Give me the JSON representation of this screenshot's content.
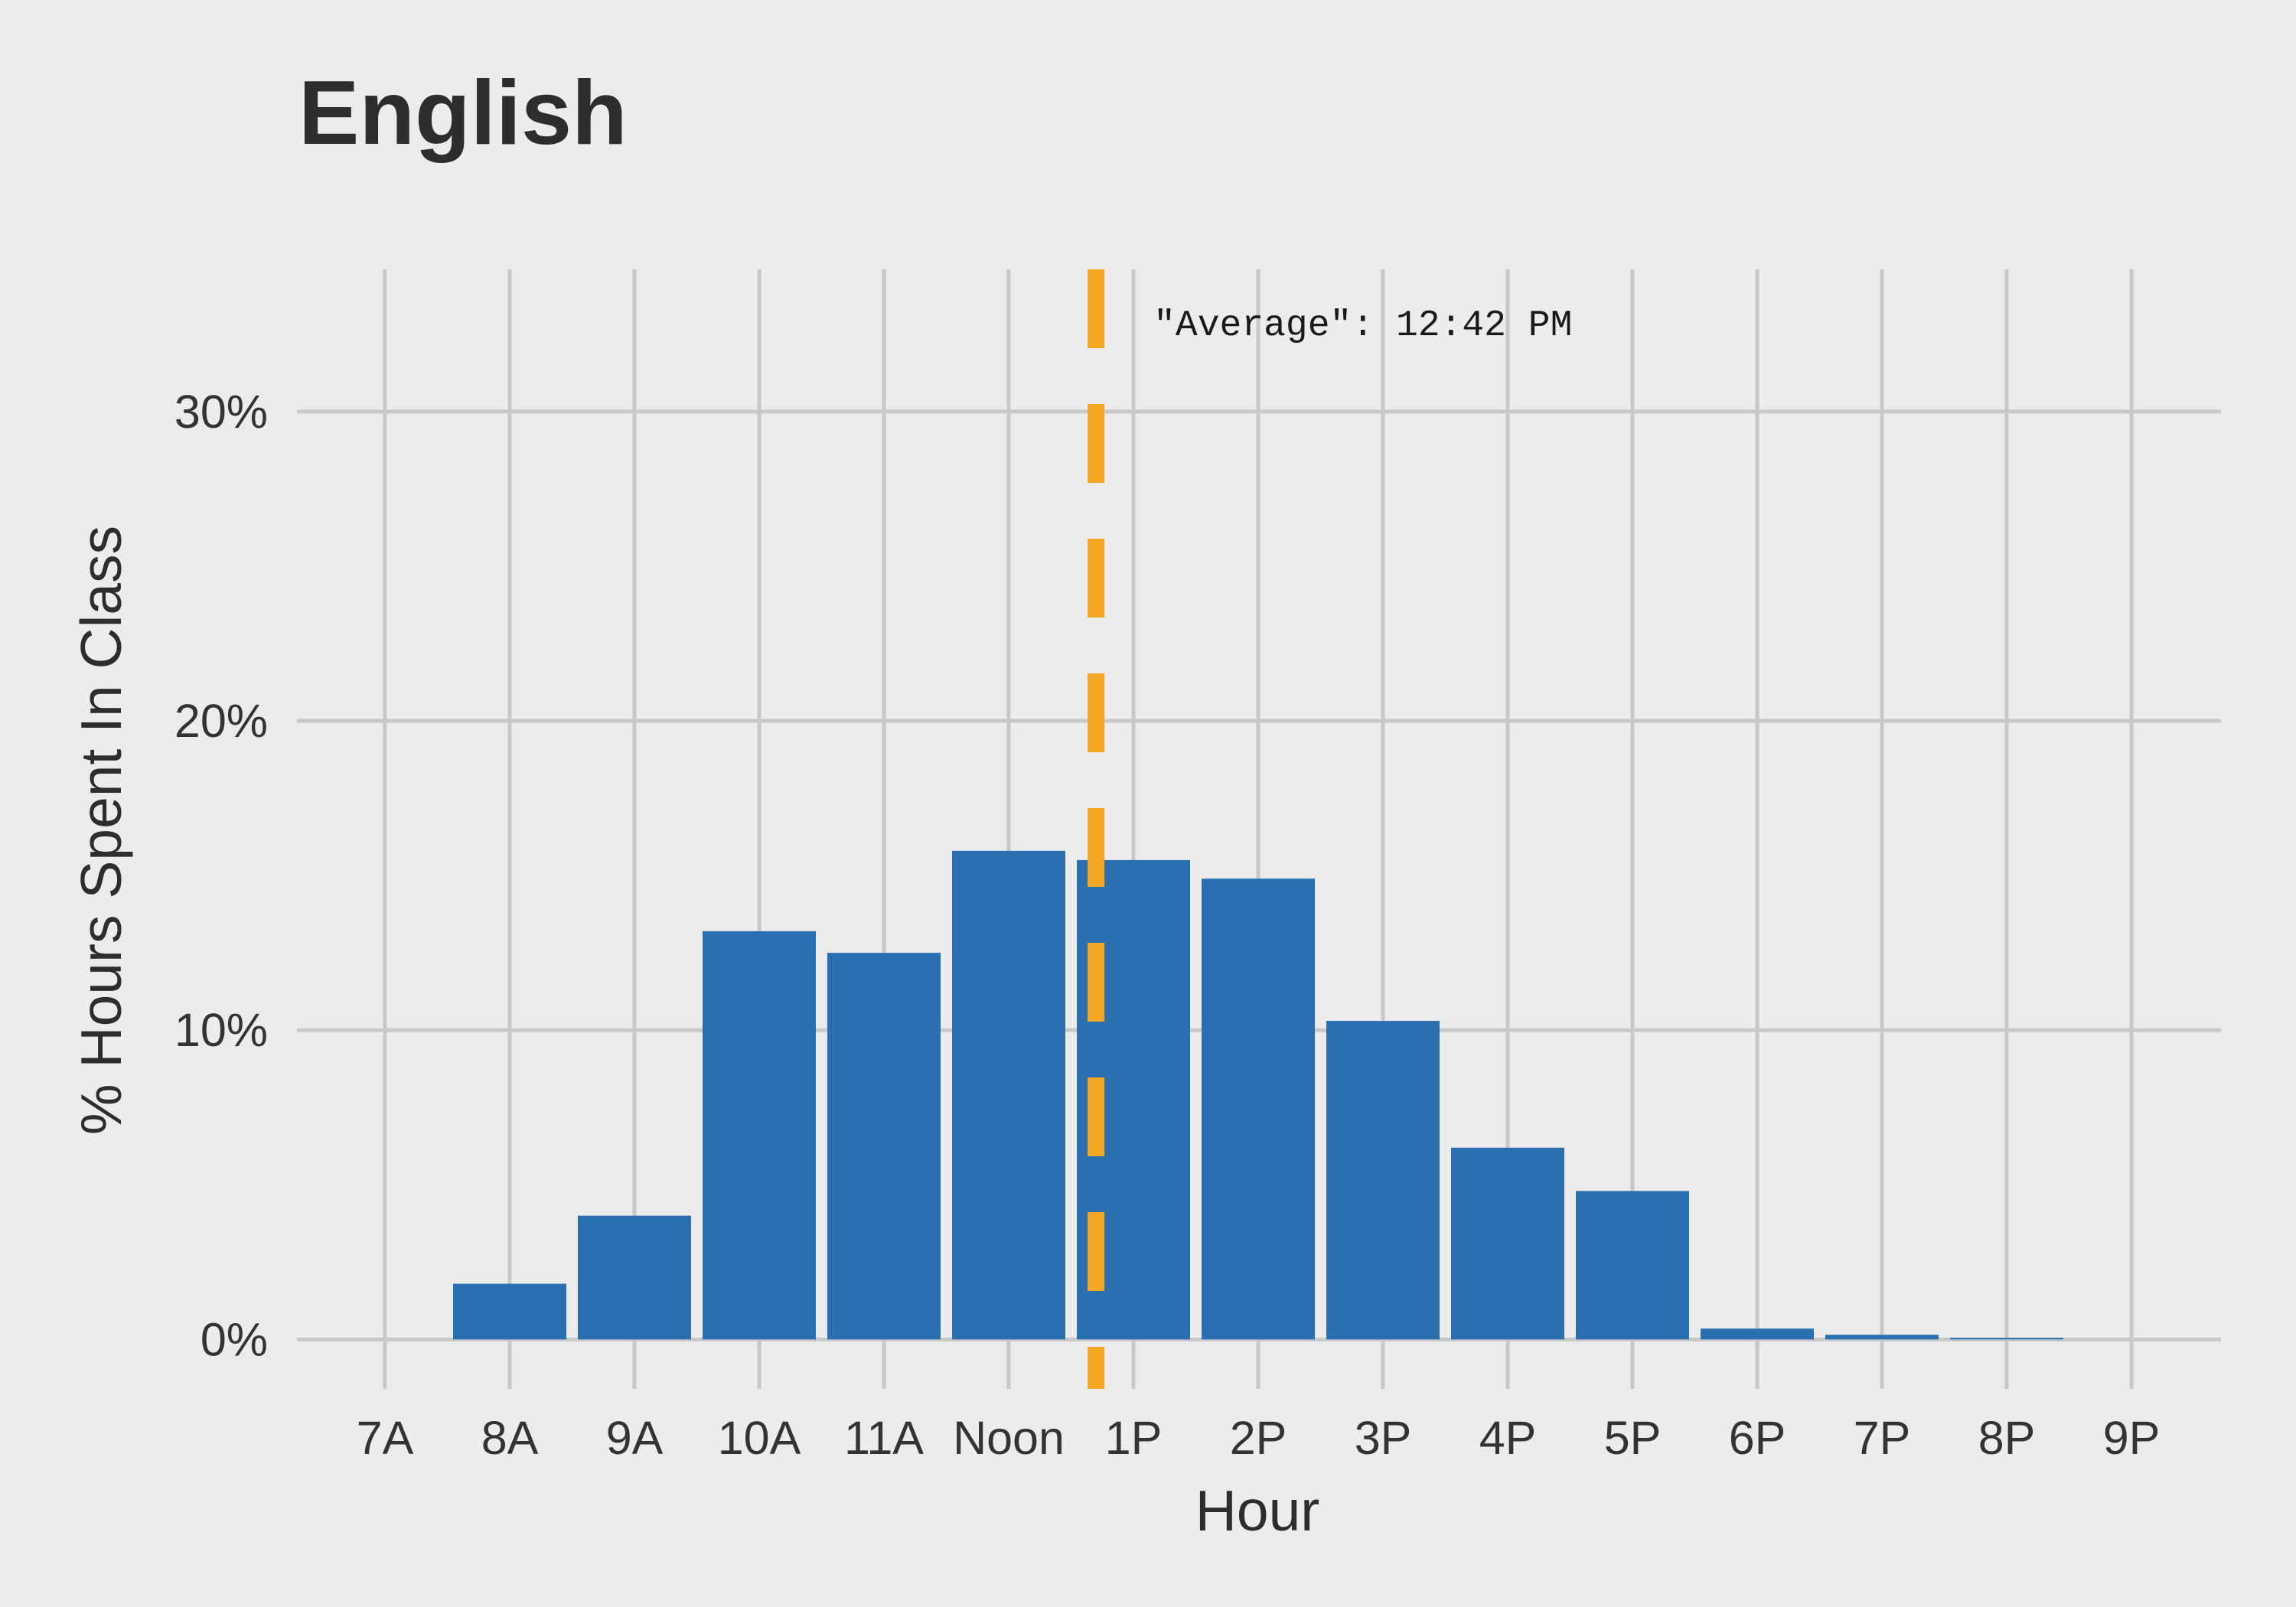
{
  "chart_data": {
    "type": "bar",
    "title": "English",
    "xlabel": "Hour",
    "ylabel": "% Hours Spent In Class",
    "categories": [
      "7A",
      "8A",
      "9A",
      "10A",
      "11A",
      "Noon",
      "1P",
      "2P",
      "3P",
      "4P",
      "5P",
      "6P",
      "7P",
      "8P",
      "9P"
    ],
    "values": [
      0,
      1.8,
      4.0,
      13.2,
      12.5,
      15.8,
      15.5,
      14.9,
      10.3,
      6.2,
      4.8,
      0.35,
      0.15,
      0.05,
      0
    ],
    "ylim": [
      -1.6,
      34.6
    ],
    "yticks": [
      0,
      10,
      20,
      30
    ],
    "ytick_labels": [
      "0%",
      "10%",
      "20%",
      "30%"
    ],
    "grid": true,
    "bar_color": "#2a6fb0",
    "reference_line": {
      "x": 12.7,
      "label": "\"Average\": 12:42 PM",
      "color": "#f5a623",
      "style": "dashed"
    }
  }
}
